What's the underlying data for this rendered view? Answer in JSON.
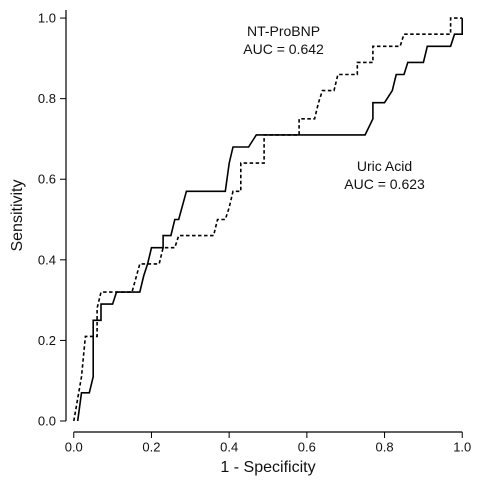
{
  "chart_data": {
    "type": "line",
    "title": "",
    "xlabel": "1 - Specificity",
    "ylabel": "Sensitivity",
    "xlim": [
      -0.02,
      1.02
    ],
    "ylim": [
      0,
      1.02
    ],
    "xticks": [
      0.0,
      0.2,
      0.4,
      0.6,
      0.8,
      1.0
    ],
    "xtick_labels": [
      "0.0",
      "0.2",
      "0.4",
      "0.6",
      "0.8",
      "1.0"
    ],
    "yticks": [
      0.0,
      0.2,
      0.4,
      0.6,
      0.8,
      1.0
    ],
    "ytick_labels": [
      "0.0",
      "0.2",
      "0.4",
      "0.6",
      "0.8",
      "1.0"
    ],
    "grid": false,
    "series": [
      {
        "name": "Uric Acid",
        "style": "solid",
        "color": "#000000",
        "points": [
          [
            0.01,
            0.0
          ],
          [
            0.02,
            0.07
          ],
          [
            0.04,
            0.07
          ],
          [
            0.05,
            0.11
          ],
          [
            0.05,
            0.25
          ],
          [
            0.07,
            0.25
          ],
          [
            0.07,
            0.29
          ],
          [
            0.1,
            0.29
          ],
          [
            0.11,
            0.32
          ],
          [
            0.17,
            0.32
          ],
          [
            0.18,
            0.36
          ],
          [
            0.19,
            0.39
          ],
          [
            0.2,
            0.43
          ],
          [
            0.23,
            0.43
          ],
          [
            0.23,
            0.46
          ],
          [
            0.25,
            0.46
          ],
          [
            0.26,
            0.5
          ],
          [
            0.27,
            0.5
          ],
          [
            0.29,
            0.57
          ],
          [
            0.39,
            0.57
          ],
          [
            0.4,
            0.64
          ],
          [
            0.41,
            0.68
          ],
          [
            0.45,
            0.68
          ],
          [
            0.47,
            0.71
          ],
          [
            0.75,
            0.71
          ],
          [
            0.77,
            0.75
          ],
          [
            0.77,
            0.79
          ],
          [
            0.8,
            0.79
          ],
          [
            0.82,
            0.82
          ],
          [
            0.83,
            0.86
          ],
          [
            0.85,
            0.86
          ],
          [
            0.86,
            0.89
          ],
          [
            0.9,
            0.89
          ],
          [
            0.91,
            0.93
          ],
          [
            0.97,
            0.93
          ],
          [
            0.98,
            0.96
          ],
          [
            1.0,
            0.96
          ],
          [
            1.0,
            1.0
          ]
        ]
      },
      {
        "name": "NT-ProBNP",
        "style": "dashed",
        "color": "#000000",
        "points": [
          [
            0.0,
            0.0
          ],
          [
            0.02,
            0.11
          ],
          [
            0.03,
            0.21
          ],
          [
            0.06,
            0.21
          ],
          [
            0.06,
            0.28
          ],
          [
            0.07,
            0.32
          ],
          [
            0.15,
            0.32
          ],
          [
            0.17,
            0.39
          ],
          [
            0.22,
            0.39
          ],
          [
            0.23,
            0.43
          ],
          [
            0.26,
            0.43
          ],
          [
            0.27,
            0.46
          ],
          [
            0.36,
            0.46
          ],
          [
            0.37,
            0.5
          ],
          [
            0.39,
            0.5
          ],
          [
            0.4,
            0.53
          ],
          [
            0.41,
            0.57
          ],
          [
            0.43,
            0.57
          ],
          [
            0.43,
            0.64
          ],
          [
            0.49,
            0.64
          ],
          [
            0.49,
            0.68
          ],
          [
            0.49,
            0.71
          ],
          [
            0.58,
            0.71
          ],
          [
            0.58,
            0.75
          ],
          [
            0.62,
            0.75
          ],
          [
            0.63,
            0.79
          ],
          [
            0.64,
            0.82
          ],
          [
            0.67,
            0.82
          ],
          [
            0.68,
            0.86
          ],
          [
            0.73,
            0.86
          ],
          [
            0.73,
            0.89
          ],
          [
            0.77,
            0.89
          ],
          [
            0.77,
            0.93
          ],
          [
            0.84,
            0.93
          ],
          [
            0.85,
            0.96
          ],
          [
            0.97,
            0.96
          ],
          [
            0.97,
            1.0
          ],
          [
            1.0,
            1.0
          ]
        ]
      }
    ],
    "annotations": [
      {
        "lines": [
          "NT-ProBNP",
          "AUC = 0.642"
        ],
        "x": 0.54,
        "y": 0.955
      },
      {
        "lines": [
          "Uric Acid",
          "AUC = 0.623"
        ],
        "x": 0.8,
        "y": 0.62
      }
    ]
  }
}
